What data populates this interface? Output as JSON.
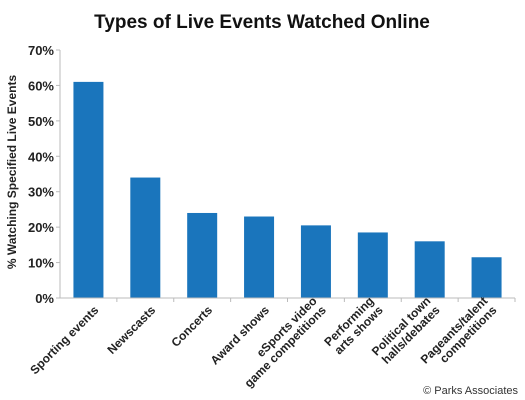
{
  "chart_data": {
    "type": "bar",
    "title": "Types of Live Events Watched Online",
    "xlabel": "",
    "ylabel": "% Watching Specified Live Events",
    "categories": [
      [
        "Sporting events"
      ],
      [
        "Newscasts"
      ],
      [
        "Concerts"
      ],
      [
        "Award shows"
      ],
      [
        "eSports video",
        "game competitions"
      ],
      [
        "Performing",
        "arts shows"
      ],
      [
        "Political town",
        "halls/debates"
      ],
      [
        "Pageants/talent",
        "competitions"
      ]
    ],
    "values": [
      61,
      34,
      24,
      23,
      20.5,
      18.5,
      16,
      11.5
    ],
    "ylim": [
      0,
      70
    ],
    "yticks": [
      "0%",
      "10%",
      "20%",
      "30%",
      "40%",
      "50%",
      "60%",
      "70%"
    ],
    "grid": false,
    "bar_color": "#1a75bc",
    "axis_color": "#bbbbbb",
    "credit": "© Parks Associates"
  }
}
